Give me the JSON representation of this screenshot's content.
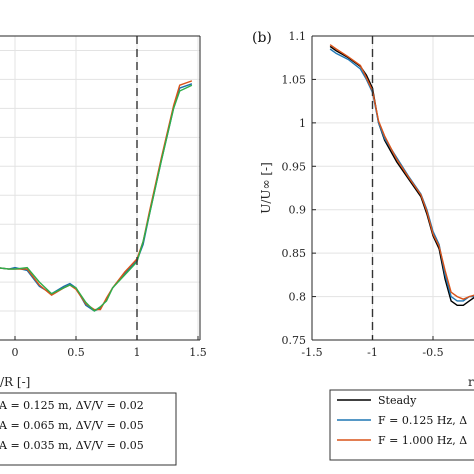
{
  "chart_data": [
    {
      "panel_label": "",
      "type": "line",
      "xlabel_visible": "/R [-]",
      "xlim": [
        -0.15,
        1.5
      ],
      "xticks": [
        {
          "v": 0,
          "label": "0"
        },
        {
          "v": 0.5,
          "label": "0.5"
        },
        {
          "v": 1,
          "label": "1"
        },
        {
          "v": 1.5,
          "label": "1.5"
        }
      ],
      "ylim": [
        0.5,
        1.55
      ],
      "grid": true,
      "vline_x": 1.0,
      "series": [
        {
          "color": "#1a6faa",
          "x": [
            -0.15,
            -0.05,
            0.0,
            0.1,
            0.2,
            0.3,
            0.4,
            0.45,
            0.5,
            0.58,
            0.65,
            0.7,
            0.75,
            0.8,
            0.9,
            1.0,
            1.05,
            1.1,
            1.2,
            1.3,
            1.35,
            1.45
          ],
          "y": [
            0.75,
            0.745,
            0.75,
            0.74,
            0.685,
            0.66,
            0.685,
            0.695,
            0.68,
            0.62,
            0.6,
            0.61,
            0.64,
            0.68,
            0.73,
            0.775,
            0.83,
            0.93,
            1.12,
            1.3,
            1.37,
            1.385
          ]
        },
        {
          "color": "#d95319",
          "x": [
            -0.15,
            -0.05,
            0.0,
            0.1,
            0.2,
            0.3,
            0.4,
            0.45,
            0.5,
            0.58,
            0.65,
            0.7,
            0.75,
            0.8,
            0.9,
            1.0,
            1.05,
            1.1,
            1.2,
            1.3,
            1.35,
            1.45
          ],
          "y": [
            0.75,
            0.745,
            0.745,
            0.745,
            0.69,
            0.655,
            0.68,
            0.69,
            0.675,
            0.625,
            0.605,
            0.605,
            0.645,
            0.68,
            0.735,
            0.78,
            0.84,
            0.94,
            1.13,
            1.31,
            1.38,
            1.395
          ]
        },
        {
          "color": "#2eae4a",
          "x": [
            -0.15,
            -0.05,
            0.0,
            0.1,
            0.2,
            0.3,
            0.4,
            0.45,
            0.5,
            0.58,
            0.65,
            0.7,
            0.75,
            0.8,
            0.9,
            1.0,
            1.05,
            1.1,
            1.2,
            1.3,
            1.35,
            1.45
          ],
          "y": [
            0.75,
            0.745,
            0.745,
            0.75,
            0.7,
            0.66,
            0.68,
            0.69,
            0.68,
            0.63,
            0.6,
            0.615,
            0.635,
            0.68,
            0.725,
            0.77,
            0.84,
            0.93,
            1.12,
            1.3,
            1.36,
            1.38
          ]
        }
      ],
      "legend": {
        "placement": "bottom",
        "entries": [
          "A = 0.125 m, ΔV/V = 0.02",
          "A = 0.065 m, ΔV/V = 0.05",
          "A = 0.035 m, ΔV/V = 0.05"
        ]
      }
    },
    {
      "panel_label": "(b)",
      "type": "line",
      "xlabel_visible": "r",
      "ylabel": "U/U∞ [-]",
      "xlim": [
        -1.5,
        0.0
      ],
      "xticks": [
        {
          "v": -1.5,
          "label": "-1.5"
        },
        {
          "v": -1.0,
          "label": "-1"
        },
        {
          "v": -0.5,
          "label": "-0.5"
        }
      ],
      "ylim": [
        0.75,
        1.1
      ],
      "yticks": [
        {
          "v": 0.75,
          "label": "0.75"
        },
        {
          "v": 0.8,
          "label": "0.8"
        },
        {
          "v": 0.85,
          "label": "0.85"
        },
        {
          "v": 0.9,
          "label": "0.9"
        },
        {
          "v": 0.95,
          "label": "0.95"
        },
        {
          "v": 1.0,
          "label": "1"
        },
        {
          "v": 1.05,
          "label": "1.05"
        },
        {
          "v": 1.1,
          "label": "1.1"
        }
      ],
      "grid": true,
      "vline_x": -1.0,
      "series": [
        {
          "name": "Steady",
          "color": "#000000",
          "x": [
            -1.35,
            -1.3,
            -1.2,
            -1.1,
            -1.05,
            -1.0,
            -0.95,
            -0.9,
            -0.8,
            -0.7,
            -0.6,
            -0.55,
            -0.5,
            -0.45,
            -0.4,
            -0.35,
            -0.3,
            -0.25,
            -0.2,
            -0.15,
            -0.1
          ],
          "y": [
            1.088,
            1.083,
            1.075,
            1.065,
            1.055,
            1.04,
            1.0,
            0.98,
            0.955,
            0.935,
            0.915,
            0.895,
            0.87,
            0.855,
            0.82,
            0.795,
            0.79,
            0.79,
            0.795,
            0.8,
            0.8
          ]
        },
        {
          "name": "F = 0.125 Hz, ...",
          "color": "#1f77b4",
          "x": [
            -1.35,
            -1.3,
            -1.2,
            -1.1,
            -1.05,
            -1.0,
            -0.95,
            -0.9,
            -0.8,
            -0.7,
            -0.6,
            -0.55,
            -0.5,
            -0.45,
            -0.4,
            -0.35,
            -0.3,
            -0.25,
            -0.2,
            -0.15,
            -0.1
          ],
          "y": [
            1.085,
            1.08,
            1.073,
            1.062,
            1.05,
            1.035,
            1.0,
            0.982,
            0.96,
            0.938,
            0.918,
            0.9,
            0.875,
            0.86,
            0.825,
            0.8,
            0.795,
            0.795,
            0.8,
            0.8,
            0.802
          ]
        },
        {
          "name": "F = 1.000 Hz, ...",
          "color": "#d95319",
          "x": [
            -1.35,
            -1.3,
            -1.2,
            -1.1,
            -1.05,
            -1.0,
            -0.95,
            -0.9,
            -0.8,
            -0.7,
            -0.6,
            -0.55,
            -0.5,
            -0.45,
            -0.4,
            -0.35,
            -0.3,
            -0.25,
            -0.2,
            -0.15,
            -0.1
          ],
          "y": [
            1.09,
            1.085,
            1.076,
            1.066,
            1.052,
            1.037,
            1.002,
            0.985,
            0.958,
            0.937,
            0.917,
            0.898,
            0.872,
            0.858,
            0.83,
            0.805,
            0.8,
            0.797,
            0.8,
            0.802,
            0.803
          ]
        }
      ],
      "legend": {
        "placement": "bottom",
        "entries": [
          "Steady",
          "F = 0.125 Hz, Δ",
          "F = 1.000 Hz, Δ"
        ]
      }
    }
  ]
}
